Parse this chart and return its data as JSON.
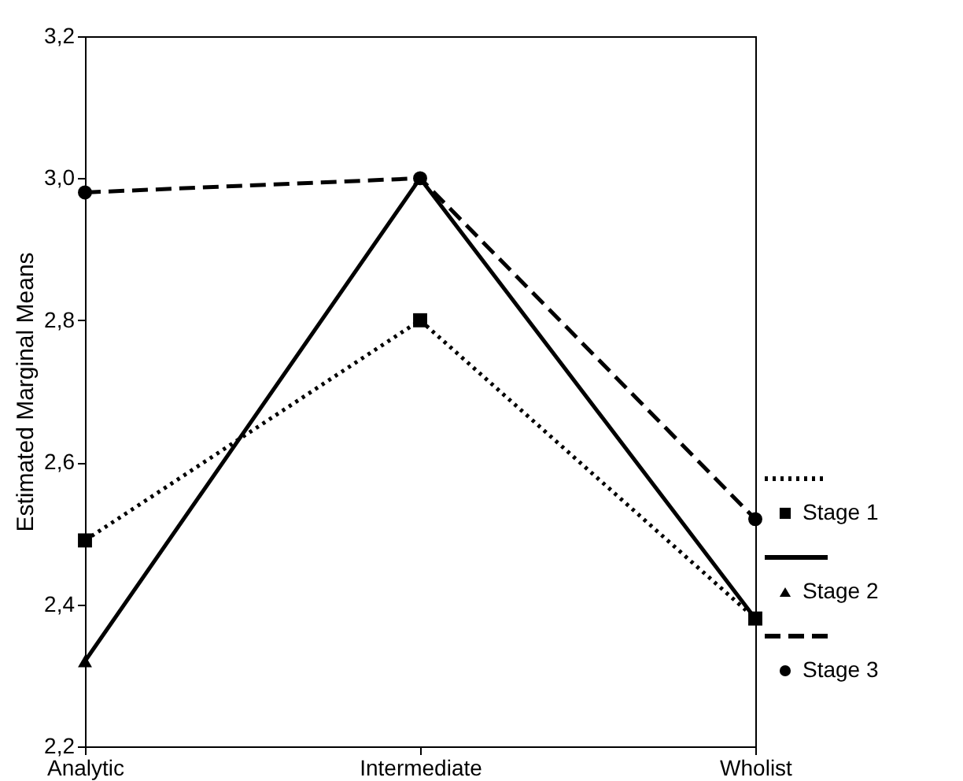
{
  "chart_data": {
    "type": "line",
    "ylabel": "Estimated Marginal Means",
    "categories": [
      "Analytic",
      "Intermediate",
      "Wholist"
    ],
    "series": [
      {
        "name": "Stage 1",
        "color": "#000000",
        "values": [
          2.49,
          2.8,
          2.38
        ],
        "marker": "square",
        "line_style": "dotted"
      },
      {
        "name": "Stage 2",
        "color": "#000000",
        "values": [
          2.32,
          3.0,
          2.38
        ],
        "marker": "triangle",
        "line_style": "solid"
      },
      {
        "name": "Stage 3",
        "color": "#000000",
        "values": [
          2.98,
          3.0,
          2.52
        ],
        "marker": "circle",
        "line_style": "dashed"
      }
    ],
    "ylim": [
      2.2,
      3.2
    ],
    "yticks": [
      {
        "value": 2.2,
        "label": "2,2"
      },
      {
        "value": 2.4,
        "label": "2,4"
      },
      {
        "value": 2.6,
        "label": "2,6"
      },
      {
        "value": 2.8,
        "label": "2,8"
      },
      {
        "value": 3.0,
        "label": "3,0"
      },
      {
        "value": 3.2,
        "label": "3,2"
      }
    ],
    "grid": false,
    "legend": "bottom right"
  }
}
